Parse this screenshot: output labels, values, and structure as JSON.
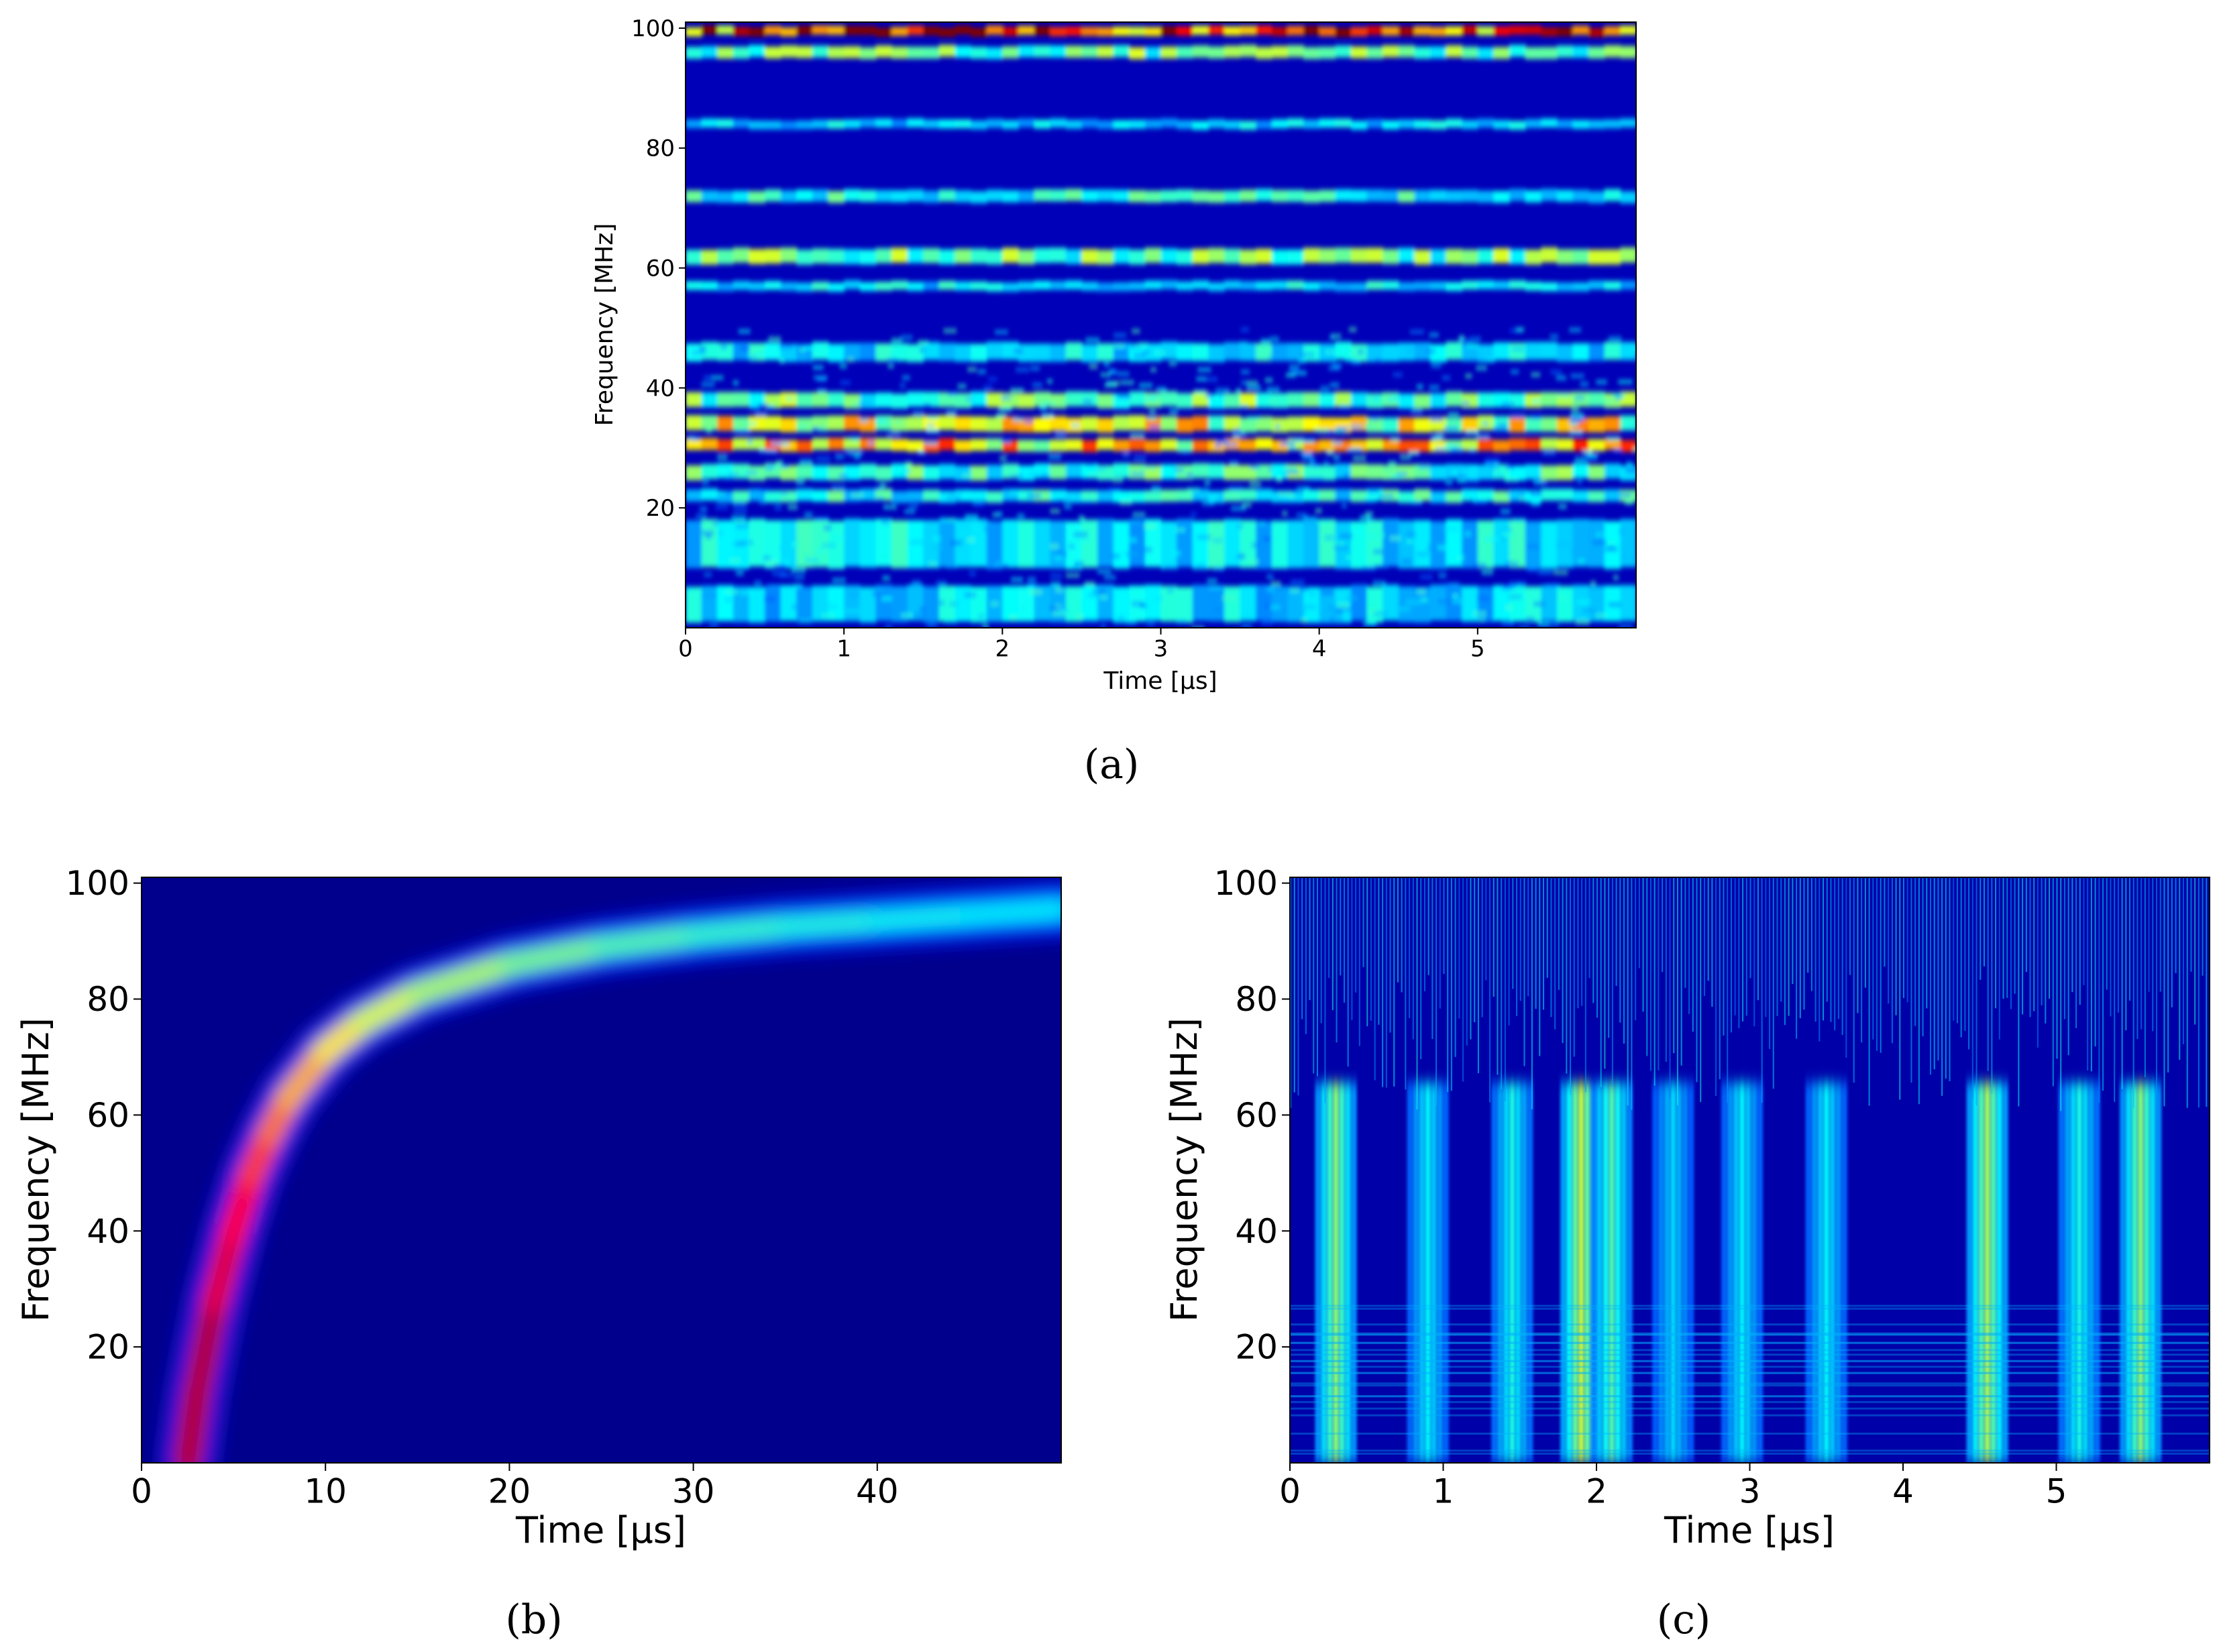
{
  "figure": {
    "labels": {
      "a": "(a)",
      "b": "(b)",
      "c": "(c)"
    }
  },
  "colors": {
    "jet_background": "#00007f",
    "jet_low": "#0000ff",
    "jet_mid": "#00d4ff",
    "jet_high": "#ffff00",
    "jet_peak": "#ff0000"
  },
  "chart_data": [
    {
      "id": "a",
      "type": "heatmap",
      "colormap": "jet",
      "title": "",
      "xlabel": "Time [μs]",
      "ylabel": "Frequency [MHz]",
      "xlim": [
        0,
        6
      ],
      "ylim": [
        0,
        101
      ],
      "xticks": [
        0,
        1,
        2,
        3,
        4,
        5
      ],
      "yticks": [
        20,
        40,
        60,
        80,
        100
      ],
      "bands": [
        {
          "f": 99.5,
          "width": 1.5,
          "intensity": 0.9
        },
        {
          "f": 96,
          "width": 2,
          "intensity": 0.45
        },
        {
          "f": 84,
          "width": 1.5,
          "intensity": 0.28
        },
        {
          "f": 72,
          "width": 2,
          "intensity": 0.35
        },
        {
          "f": 62,
          "width": 2.5,
          "intensity": 0.45
        },
        {
          "f": 57,
          "width": 1.5,
          "intensity": 0.3
        },
        {
          "f": 46,
          "width": 3,
          "intensity": 0.3
        },
        {
          "f": 38,
          "width": 2.5,
          "intensity": 0.45
        },
        {
          "f": 34,
          "width": 2.5,
          "intensity": 0.6
        },
        {
          "f": 30.5,
          "width": 2,
          "intensity": 0.7
        },
        {
          "f": 26,
          "width": 2.5,
          "intensity": 0.4
        },
        {
          "f": 22,
          "width": 2,
          "intensity": 0.35
        },
        {
          "f": 14,
          "width": 8,
          "intensity": 0.3
        },
        {
          "f": 4,
          "width": 6,
          "intensity": 0.28
        }
      ]
    },
    {
      "id": "b",
      "type": "heatmap",
      "colormap": "jet",
      "title": "",
      "xlabel": "Time [μs]",
      "ylabel": "Frequency [MHz]",
      "xlim": [
        0,
        50
      ],
      "ylim": [
        0,
        101
      ],
      "xticks": [
        0,
        10,
        20,
        30,
        40
      ],
      "yticks": [
        20,
        40,
        60,
        80,
        100
      ],
      "chirp_ridge": {
        "x": [
          2.5,
          3,
          4,
          5,
          6,
          7,
          8,
          10,
          12,
          15,
          20,
          25,
          30,
          35,
          40,
          45,
          50
        ],
        "y": [
          0,
          12,
          28,
          40,
          50,
          57,
          63,
          71,
          76,
          81,
          86,
          89,
          91,
          92.5,
          93.5,
          94.5,
          95.5
        ],
        "intensity": [
          1.0,
          1.0,
          0.95,
          0.92,
          0.86,
          0.8,
          0.74,
          0.68,
          0.62,
          0.57,
          0.52,
          0.48,
          0.45,
          0.43,
          0.41,
          0.4,
          0.4
        ]
      }
    },
    {
      "id": "c",
      "type": "heatmap",
      "colormap": "jet",
      "title": "",
      "xlabel": "Time [μs]",
      "ylabel": "Frequency [MHz]",
      "xlim": [
        0,
        6
      ],
      "ylim": [
        0,
        101
      ],
      "xticks": [
        0,
        1,
        2,
        3,
        4,
        5
      ],
      "yticks": [
        20,
        40,
        60,
        80,
        100
      ],
      "bursts": [
        {
          "t": 0.3,
          "intensity": 0.65
        },
        {
          "t": 0.9,
          "intensity": 0.4
        },
        {
          "t": 1.45,
          "intensity": 0.45
        },
        {
          "t": 1.9,
          "intensity": 0.75
        },
        {
          "t": 2.1,
          "intensity": 0.55
        },
        {
          "t": 2.5,
          "intensity": 0.35
        },
        {
          "t": 2.95,
          "intensity": 0.4
        },
        {
          "t": 3.5,
          "intensity": 0.4
        },
        {
          "t": 4.55,
          "intensity": 0.7
        },
        {
          "t": 5.15,
          "intensity": 0.45
        },
        {
          "t": 5.55,
          "intensity": 0.65
        }
      ]
    }
  ]
}
